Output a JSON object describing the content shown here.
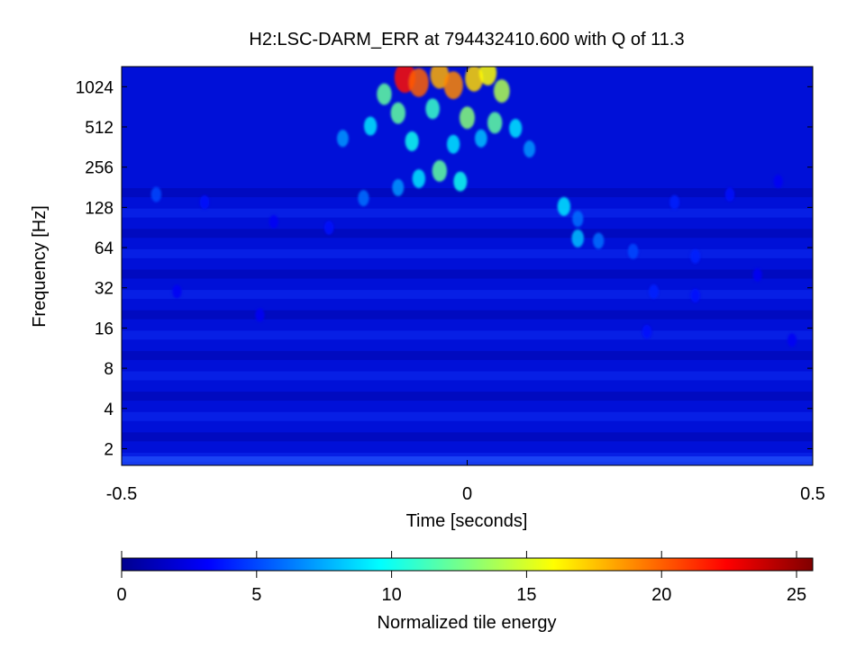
{
  "chart_data": {
    "type": "heatmap",
    "title": "H2:LSC-DARM_ERR at 794432410.600 with Q of 11.3",
    "xlabel": "Time [seconds]",
    "ylabel": "Frequency [Hz]",
    "xlim": [
      -0.5,
      0.5
    ],
    "ylim": [
      1.5,
      1448
    ],
    "yscale": "log2",
    "x_ticks": [
      {
        "value": -0.5,
        "label": "-0.5"
      },
      {
        "value": 0,
        "label": "0"
      },
      {
        "value": 0.5,
        "label": "0.5"
      }
    ],
    "y_ticks": [
      {
        "value": 2,
        "label": "2"
      },
      {
        "value": 4,
        "label": "4"
      },
      {
        "value": 8,
        "label": "8"
      },
      {
        "value": 16,
        "label": "16"
      },
      {
        "value": 32,
        "label": "32"
      },
      {
        "value": 64,
        "label": "64"
      },
      {
        "value": 128,
        "label": "128"
      },
      {
        "value": 256,
        "label": "256"
      },
      {
        "value": 512,
        "label": "512"
      },
      {
        "value": 1024,
        "label": "1024"
      }
    ],
    "colorbar": {
      "label": "Normalized tile energy",
      "range": [
        0,
        25.6
      ],
      "colormap": "jet",
      "ticks": [
        {
          "value": 0,
          "label": "0"
        },
        {
          "value": 5,
          "label": "5"
        },
        {
          "value": 10,
          "label": "10"
        },
        {
          "value": 15,
          "label": "15"
        },
        {
          "value": 20,
          "label": "20"
        },
        {
          "value": 25,
          "label": "25"
        }
      ]
    },
    "blobs": [
      {
        "t": -0.09,
        "f": 1200,
        "e": 22
      },
      {
        "t": -0.07,
        "f": 1100,
        "e": 20
      },
      {
        "t": -0.04,
        "f": 1250,
        "e": 18
      },
      {
        "t": -0.02,
        "f": 1050,
        "e": 19
      },
      {
        "t": 0.01,
        "f": 1180,
        "e": 17
      },
      {
        "t": 0.03,
        "f": 1300,
        "e": 16
      },
      {
        "t": 0.05,
        "f": 950,
        "e": 14
      },
      {
        "t": -0.12,
        "f": 900,
        "e": 12
      },
      {
        "t": -0.1,
        "f": 650,
        "e": 12
      },
      {
        "t": -0.05,
        "f": 700,
        "e": 11
      },
      {
        "t": 0.0,
        "f": 600,
        "e": 13
      },
      {
        "t": 0.04,
        "f": 550,
        "e": 12
      },
      {
        "t": 0.07,
        "f": 500,
        "e": 9
      },
      {
        "t": -0.14,
        "f": 520,
        "e": 9
      },
      {
        "t": -0.18,
        "f": 420,
        "e": 7
      },
      {
        "t": -0.08,
        "f": 400,
        "e": 10
      },
      {
        "t": -0.02,
        "f": 380,
        "e": 9
      },
      {
        "t": 0.02,
        "f": 420,
        "e": 8
      },
      {
        "t": 0.09,
        "f": 350,
        "e": 7
      },
      {
        "t": -0.04,
        "f": 240,
        "e": 12
      },
      {
        "t": -0.07,
        "f": 210,
        "e": 9
      },
      {
        "t": -0.01,
        "f": 200,
        "e": 10
      },
      {
        "t": -0.1,
        "f": 180,
        "e": 7
      },
      {
        "t": -0.15,
        "f": 150,
        "e": 6
      },
      {
        "t": 0.14,
        "f": 130,
        "e": 9
      },
      {
        "t": 0.16,
        "f": 105,
        "e": 6
      },
      {
        "t": 0.16,
        "f": 75,
        "e": 8
      },
      {
        "t": 0.19,
        "f": 72,
        "e": 6
      },
      {
        "t": 0.24,
        "f": 60,
        "e": 5
      },
      {
        "t": 0.33,
        "f": 55,
        "e": 4
      },
      {
        "t": 0.27,
        "f": 30,
        "e": 4
      },
      {
        "t": 0.33,
        "f": 28,
        "e": 3.5
      },
      {
        "t": 0.42,
        "f": 40,
        "e": 3
      },
      {
        "t": -0.45,
        "f": 160,
        "e": 5
      },
      {
        "t": -0.38,
        "f": 140,
        "e": 3.5
      },
      {
        "t": -0.28,
        "f": 100,
        "e": 3
      },
      {
        "t": -0.2,
        "f": 90,
        "e": 3.5
      },
      {
        "t": 0.3,
        "f": 140,
        "e": 4
      },
      {
        "t": 0.38,
        "f": 160,
        "e": 3.5
      },
      {
        "t": 0.45,
        "f": 200,
        "e": 3
      },
      {
        "t": -0.3,
        "f": 20,
        "e": 3
      },
      {
        "t": 0.26,
        "f": 15,
        "e": 3.5
      },
      {
        "t": 0.47,
        "f": 13,
        "e": 3
      },
      {
        "t": -0.42,
        "f": 30,
        "e": 3
      }
    ]
  }
}
